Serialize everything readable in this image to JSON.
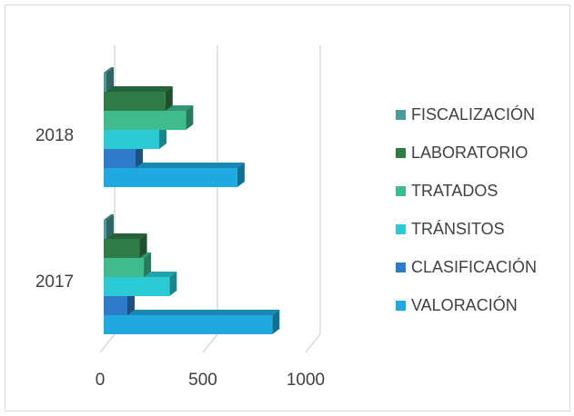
{
  "chart_data": {
    "type": "bar",
    "orientation": "horizontal",
    "categories": [
      "2017",
      "2018"
    ],
    "series": [
      {
        "name": " VALORACIÓN",
        "values": [
          820,
          650
        ],
        "color": "#1FA9E1"
      },
      {
        "name": "CLASIFICACIÓN",
        "values": [
          115,
          155
        ],
        "color": "#2E7CC9"
      },
      {
        "name": "TRÁNSITOS",
        "values": [
          320,
          270
        ],
        "color": "#2BCBD6"
      },
      {
        "name": "TRATADOS",
        "values": [
          195,
          400
        ],
        "color": "#3FBC8E"
      },
      {
        "name": "LABORATORIO",
        "values": [
          175,
          300
        ],
        "color": "#2F7A45"
      },
      {
        "name": "FISCALIZACIÓN",
        "values": [
          0,
          12
        ],
        "color": "#4C9A9A"
      }
    ],
    "xticks": [
      "0",
      "500",
      "1000"
    ],
    "xlim": [
      0,
      1000
    ],
    "grid": true,
    "legend_position": "right",
    "title": "",
    "xlabel": "",
    "ylabel": ""
  }
}
